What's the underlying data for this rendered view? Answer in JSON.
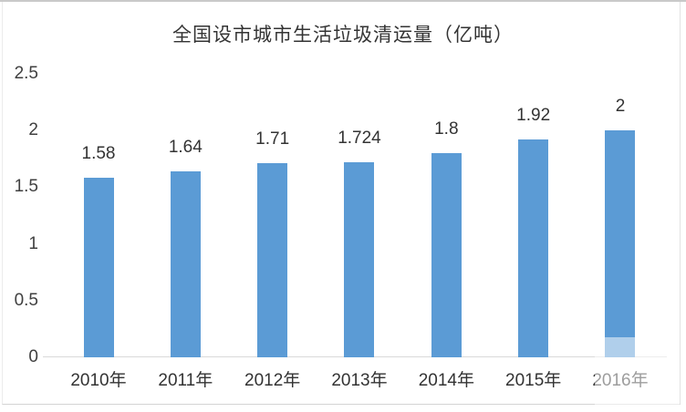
{
  "page": {
    "title": "全国设市城市生活垃圾清运量（亿吨）"
  },
  "chart_data": {
    "type": "bar",
    "title": "全国设市城市生活垃圾清运量（亿吨）",
    "categories": [
      "2010年",
      "2011年",
      "2012年",
      "2013年",
      "2014年",
      "2015年",
      "2016年"
    ],
    "values": [
      1.58,
      1.64,
      1.71,
      1.724,
      1.8,
      1.92,
      2
    ],
    "value_labels": [
      "1.58",
      "1.64",
      "1.71",
      "1.724",
      "1.8",
      "1.92",
      "2"
    ],
    "xlabel": "",
    "ylabel": "",
    "ylim": [
      0,
      2.5
    ],
    "yticks": [
      0,
      0.5,
      1,
      1.5,
      2,
      2.5
    ],
    "ytick_labels": [
      "0",
      "0.5",
      "1",
      "1.5",
      "2",
      "2.5"
    ],
    "grid": false,
    "legend": "none",
    "bar_color": "#5B9BD5",
    "axis_color": "#D9D9D9",
    "label_color": "#404040",
    "watermark": "semi-transparent white patch over bottom-right (2016 bar base and 2016年 label appear faded)"
  }
}
